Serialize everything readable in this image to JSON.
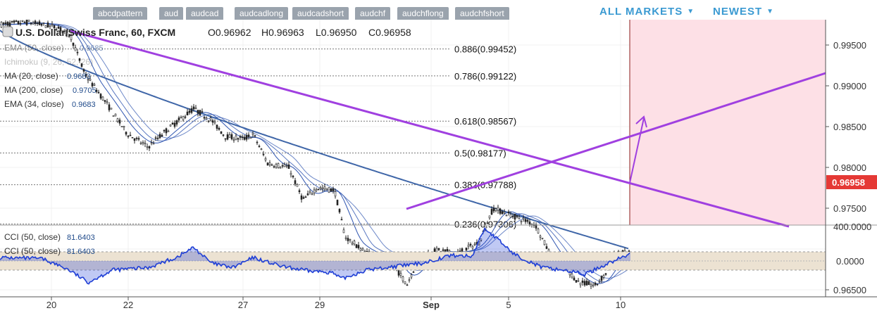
{
  "tags": [
    "abcdpattern",
    "aud",
    "audcad",
    "audcadlong",
    "audcadshort",
    "audchf",
    "audchflong",
    "audchfshort"
  ],
  "menu": {
    "all_markets": "ALL MARKETS",
    "newest": "NEWEST"
  },
  "header": {
    "symbol": "U.S. Dollar/Swiss Franc, 60, FXCM",
    "open": "O0.96962",
    "high": "H0.96963",
    "low": "L0.96950",
    "close": "C0.96958"
  },
  "legend": [
    {
      "label": "EMA (50, close)",
      "value": "0.9685"
    },
    {
      "label": "Ichimoku (9, 26, 52, 26)",
      "value": ""
    },
    {
      "label": "MA (20, close)",
      "value": "0.9683"
    },
    {
      "label": "MA (200, close)",
      "value": "0.9705"
    },
    {
      "label": "EMA (34, close)",
      "value": "0.9683"
    }
  ],
  "cci_legend": [
    {
      "label": "CCI (50, close)",
      "value": "81.6403"
    },
    {
      "label": "CCI (50, close)",
      "value": "81.6403"
    }
  ],
  "fib_levels": [
    {
      "label": "0.886(0.99452)",
      "value": 0.99452,
      "color": "#111111"
    },
    {
      "label": "0.786(0.99122)",
      "value": 0.99122,
      "color": "#111111"
    },
    {
      "label": "0.618(0.98567)",
      "value": 0.98567,
      "color": "#111111"
    },
    {
      "label": "0.5(0.98177)",
      "value": 0.98177,
      "color": "#4caf50"
    },
    {
      "label": "0.382(0.97788)",
      "value": 0.97788,
      "color": "#111111"
    },
    {
      "label": "0.236(0.97306)",
      "value": 0.97306,
      "color": "#111111"
    }
  ],
  "price_axis": {
    "ticks": [
      "0.99500",
      "0.99000",
      "0.98500",
      "0.98000",
      "0.97500",
      "0.96500"
    ],
    "current": "0.96958",
    "current_color": "#e53935"
  },
  "cci_axis": {
    "ticks": [
      "400.0000",
      "0.0000"
    ]
  },
  "time_axis": {
    "labels": [
      {
        "text": "20",
        "bold": false
      },
      {
        "text": "22",
        "bold": false
      },
      {
        "text": "27",
        "bold": false
      },
      {
        "text": "29",
        "bold": false
      },
      {
        "text": "Sep",
        "bold": true
      },
      {
        "text": "5",
        "bold": false
      },
      {
        "text": "10",
        "bold": false
      }
    ]
  },
  "colors": {
    "trendline": "#a040e0",
    "ma200": "#3f66a8",
    "ma_short": "#2f55b0",
    "cci": "#1f3fd6",
    "forecast_zone": "#fde0e6",
    "candle": "#222222"
  },
  "chart_data": {
    "type": "line",
    "title": "U.S. Dollar/Swiss Franc, 60, FXCM",
    "x": [
      "20",
      "22",
      "27",
      "29",
      "Sep",
      "5",
      "10"
    ],
    "ylim": [
      0.9625,
      0.9995
    ],
    "series": [
      {
        "name": "U.S. Dollar/Swiss Franc",
        "values": [
          0.9975,
          0.983,
          0.9835,
          0.977,
          0.9655,
          0.974,
          0.9695
        ]
      }
    ],
    "last_price": 0.96958,
    "cci_values": [
      60,
      -120,
      120,
      -80,
      -40,
      260,
      81.6
    ]
  }
}
